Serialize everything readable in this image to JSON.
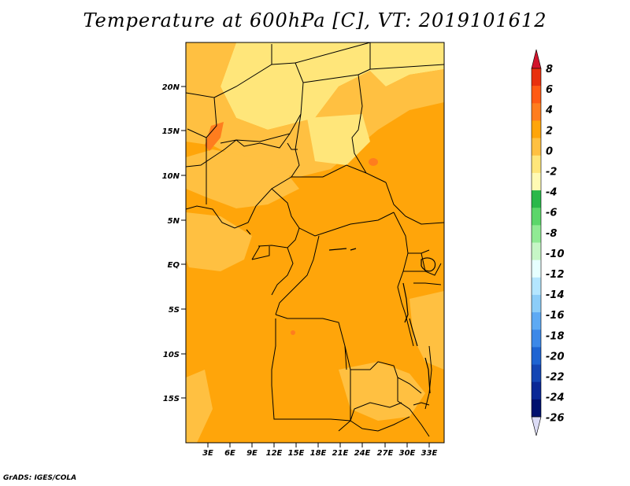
{
  "title": "Temperature at 600hPa [C], VT: 2019101612",
  "footer": "GrADS: IGES/COLA",
  "map": {
    "lat_labels": [
      "20N",
      "15N",
      "10N",
      "5N",
      "EQ",
      "5S",
      "10S",
      "15S"
    ],
    "lon_labels": [
      "3E",
      "6E",
      "9E",
      "12E",
      "15E",
      "18E",
      "21E",
      "24E",
      "27E",
      "30E",
      "33E"
    ],
    "field_colors": {
      "pale": "#ffe67a",
      "light": "#ffc041",
      "mid": "#ffa50a",
      "warm": "#ff7d1e"
    }
  },
  "colorbar": {
    "labels": [
      "8",
      "6",
      "4",
      "2",
      "0",
      "-2",
      "-4",
      "-6",
      "-8",
      "-10",
      "-12",
      "-14",
      "-16",
      "-18",
      "-20",
      "-22",
      "-24",
      "-26"
    ],
    "colors": [
      "#e8300e",
      "#ff5a14",
      "#ff7d1e",
      "#ffa50a",
      "#ffc041",
      "#ffe67a",
      "#fffab4",
      "#2ab84a",
      "#5cd66a",
      "#90ea94",
      "#c6f6c6",
      "#e6ffff",
      "#b4e6ff",
      "#8ccdf8",
      "#5eaaf4",
      "#3c88e8",
      "#1e64d2",
      "#1446b4",
      "#0a2896",
      "#00106e"
    ],
    "top_arrow_color": "#d2142c",
    "bottom_arrow_color": "#dcdcf5"
  }
}
